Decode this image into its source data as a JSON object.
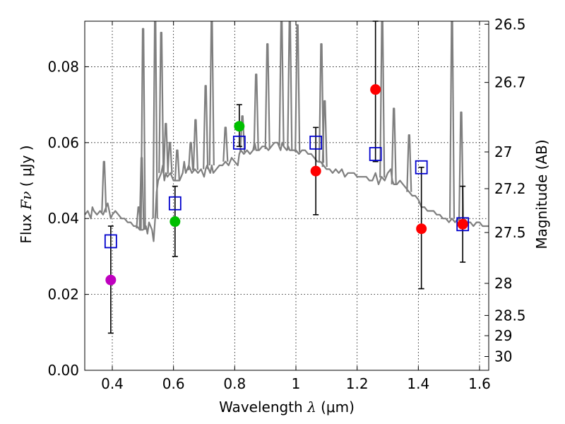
{
  "chart_data": {
    "type": "scatter",
    "title": "",
    "xlabel": "Wavelength",
    "xlabel_symbol": "λ",
    "xlabel_unit": "(μm)",
    "ylabel": "Flux",
    "ylabel_symbol": "Fν",
    "ylabel_unit": "( μJy )",
    "ylabel_right": "Magnitude (AB)",
    "xlim": [
      0.31,
      1.63
    ],
    "ylim": [
      0.0,
      0.092
    ],
    "grid": true,
    "x_ticks": [
      {
        "value": 0.4,
        "label": "0.4"
      },
      {
        "value": 0.6,
        "label": "0.6"
      },
      {
        "value": 0.8,
        "label": "0.8"
      },
      {
        "value": 1.0,
        "label": "1"
      },
      {
        "value": 1.2,
        "label": "1.2"
      },
      {
        "value": 1.4,
        "label": "1.4"
      },
      {
        "value": 1.6,
        "label": "1.6"
      }
    ],
    "y_ticks": [
      {
        "value": 0.0,
        "label": "0.00"
      },
      {
        "value": 0.02,
        "label": "0.02"
      },
      {
        "value": 0.04,
        "label": "0.04"
      },
      {
        "value": 0.06,
        "label": "0.06"
      },
      {
        "value": 0.08,
        "label": "0.08"
      }
    ],
    "mag_ticks": [
      {
        "value": 26.5,
        "label": "26.5"
      },
      {
        "value": 26.7,
        "label": "26.7"
      },
      {
        "value": 27,
        "label": "27"
      },
      {
        "value": 27.2,
        "label": "27.2"
      },
      {
        "value": 27.5,
        "label": "27.5"
      },
      {
        "value": 28,
        "label": "28"
      },
      {
        "value": 28.5,
        "label": "28.5"
      },
      {
        "value": 29,
        "label": "29"
      },
      {
        "value": 30,
        "label": "30"
      }
    ],
    "series": [
      {
        "name": "model_spectrum",
        "kind": "line",
        "color": "#7f7f7f",
        "x": [
          0.31,
          0.32,
          0.33,
          0.335,
          0.34,
          0.35,
          0.36,
          0.37,
          0.38,
          0.385,
          0.39,
          0.395,
          0.4,
          0.41,
          0.42,
          0.43,
          0.44,
          0.45,
          0.46,
          0.47,
          0.48,
          0.49,
          0.5,
          0.51,
          0.515,
          0.52,
          0.53,
          0.535,
          0.54,
          0.545,
          0.55,
          0.56,
          0.565,
          0.57,
          0.575,
          0.58,
          0.59,
          0.6,
          0.61,
          0.62,
          0.625,
          0.63,
          0.635,
          0.64,
          0.645,
          0.65,
          0.66,
          0.67,
          0.68,
          0.69,
          0.7,
          0.705,
          0.71,
          0.72,
          0.725,
          0.73,
          0.74,
          0.75,
          0.76,
          0.77,
          0.78,
          0.79,
          0.8,
          0.81,
          0.815,
          0.82,
          0.83,
          0.84,
          0.85,
          0.86,
          0.865,
          0.87,
          0.88,
          0.89,
          0.9,
          0.91,
          0.92,
          0.93,
          0.94,
          0.95,
          0.955,
          0.96,
          0.97,
          0.975,
          0.98,
          0.99,
          1.0,
          1.01,
          1.02,
          1.03,
          1.04,
          1.05,
          1.06,
          1.07,
          1.08,
          1.09,
          1.1,
          1.11,
          1.12,
          1.13,
          1.14,
          1.15,
          1.16,
          1.17,
          1.18,
          1.19,
          1.2,
          1.21,
          1.22,
          1.23,
          1.24,
          1.25,
          1.26,
          1.27,
          1.28,
          1.29,
          1.3,
          1.31,
          1.315,
          1.32,
          1.33,
          1.34,
          1.35,
          1.36,
          1.37,
          1.38,
          1.39,
          1.4,
          1.41,
          1.42,
          1.43,
          1.44,
          1.45,
          1.46,
          1.47,
          1.48,
          1.49,
          1.5,
          1.51,
          1.52,
          1.53,
          1.535,
          1.54,
          1.55,
          1.56,
          1.57,
          1.58,
          1.59,
          1.6,
          1.61,
          1.62,
          1.63
        ],
        "y": [
          0.041,
          0.042,
          0.04,
          0.043,
          0.042,
          0.041,
          0.042,
          0.041,
          0.043,
          0.044,
          0.042,
          0.04,
          0.041,
          0.042,
          0.041,
          0.04,
          0.04,
          0.039,
          0.039,
          0.038,
          0.038,
          0.037,
          0.037,
          0.038,
          0.036,
          0.039,
          0.037,
          0.034,
          0.04,
          0.047,
          0.05,
          0.052,
          0.054,
          0.05,
          0.052,
          0.051,
          0.052,
          0.05,
          0.05,
          0.05,
          0.051,
          0.052,
          0.055,
          0.052,
          0.053,
          0.054,
          0.052,
          0.053,
          0.052,
          0.053,
          0.051,
          0.053,
          0.054,
          0.052,
          0.054,
          0.052,
          0.053,
          0.054,
          0.054,
          0.055,
          0.054,
          0.056,
          0.055,
          0.054,
          0.057,
          0.058,
          0.057,
          0.058,
          0.057,
          0.058,
          0.06,
          0.058,
          0.058,
          0.059,
          0.059,
          0.058,
          0.059,
          0.06,
          0.06,
          0.058,
          0.06,
          0.059,
          0.058,
          0.059,
          0.058,
          0.058,
          0.058,
          0.057,
          0.058,
          0.058,
          0.057,
          0.057,
          0.056,
          0.055,
          0.055,
          0.054,
          0.053,
          0.053,
          0.052,
          0.053,
          0.052,
          0.053,
          0.051,
          0.052,
          0.052,
          0.052,
          0.051,
          0.051,
          0.051,
          0.051,
          0.05,
          0.05,
          0.052,
          0.049,
          0.051,
          0.05,
          0.052,
          0.053,
          0.05,
          0.049,
          0.049,
          0.05,
          0.049,
          0.048,
          0.047,
          0.046,
          0.046,
          0.045,
          0.043,
          0.043,
          0.042,
          0.042,
          0.042,
          0.041,
          0.041,
          0.04,
          0.04,
          0.039,
          0.04,
          0.039,
          0.04,
          0.039,
          0.039,
          0.04,
          0.039,
          0.039,
          0.038,
          0.039,
          0.039,
          0.038,
          0.038,
          0.038
        ],
        "emission_lines": [
          {
            "x": 0.373,
            "peak": 0.055
          },
          {
            "x": 0.486,
            "peak": 0.043
          },
          {
            "x": 0.496,
            "peak": 0.056
          },
          {
            "x": 0.5007,
            "peak": 0.09
          },
          {
            "x": 0.54,
            "peak": 0.092
          },
          {
            "x": 0.56,
            "peak": 0.089
          },
          {
            "x": 0.575,
            "peak": 0.065
          },
          {
            "x": 0.588,
            "peak": 0.06
          },
          {
            "x": 0.612,
            "peak": 0.058
          },
          {
            "x": 0.6563,
            "peak": 0.06
          },
          {
            "x": 0.672,
            "peak": 0.066
          },
          {
            "x": 0.705,
            "peak": 0.075
          },
          {
            "x": 0.725,
            "peak": 0.092
          },
          {
            "x": 0.77,
            "peak": 0.064
          },
          {
            "x": 0.825,
            "peak": 0.067
          },
          {
            "x": 0.87,
            "peak": 0.078
          },
          {
            "x": 0.907,
            "peak": 0.086
          },
          {
            "x": 0.953,
            "peak": 0.092
          },
          {
            "x": 0.98,
            "peak": 0.092
          },
          {
            "x": 1.005,
            "peak": 0.091
          },
          {
            "x": 1.083,
            "peak": 0.086
          },
          {
            "x": 1.094,
            "peak": 0.071
          },
          {
            "x": 1.282,
            "peak": 0.092
          },
          {
            "x": 1.32,
            "peak": 0.069
          },
          {
            "x": 1.37,
            "peak": 0.062
          },
          {
            "x": 1.51,
            "peak": 0.092
          },
          {
            "x": 1.54,
            "peak": 0.068
          }
        ]
      },
      {
        "name": "model_photometry",
        "kind": "marker",
        "marker": "open-square",
        "color": "#0000cc",
        "x": [
          0.395,
          0.605,
          0.815,
          1.065,
          1.26,
          1.41,
          1.545
        ],
        "y": [
          0.034,
          0.044,
          0.06,
          0.06,
          0.057,
          0.0535,
          0.0385
        ]
      },
      {
        "name": "observed_photometry",
        "kind": "marker",
        "marker": "filled-circle",
        "x": [
          0.395,
          0.605,
          0.815,
          1.065,
          1.26,
          1.41,
          1.545
        ],
        "y": [
          0.0238,
          0.0392,
          0.0643,
          0.0525,
          0.074,
          0.0373,
          0.0385
        ],
        "yerr_low": [
          0.0098,
          0.03,
          0.059,
          0.041,
          0.055,
          0.0215,
          0.0285
        ],
        "yerr_high": [
          0.038,
          0.0485,
          0.07,
          0.064,
          0.092,
          0.0535,
          0.0485
        ],
        "colors": [
          "#bf00bf",
          "#00bf00",
          "#00bf00",
          "#ff0000",
          "#ff0000",
          "#ff0000",
          "#ff0000"
        ]
      }
    ]
  }
}
